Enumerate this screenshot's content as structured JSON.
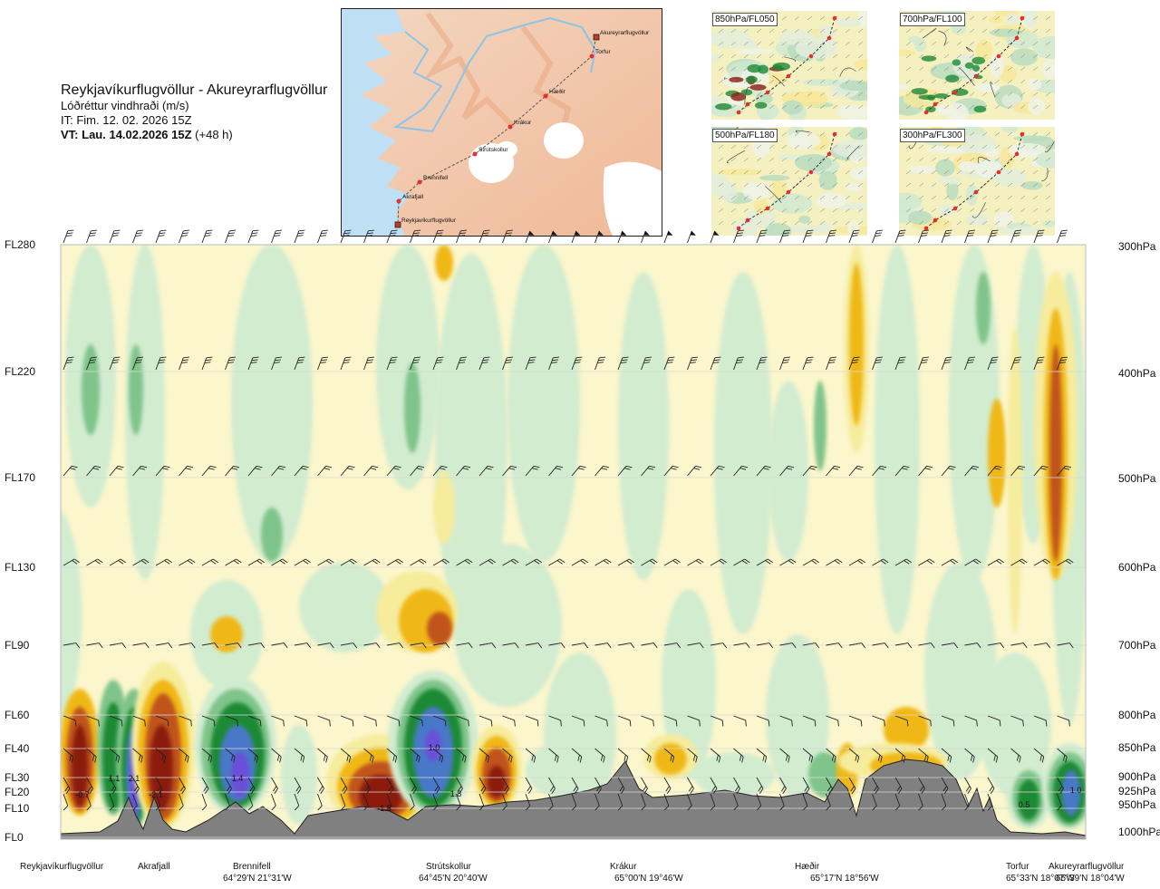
{
  "header": {
    "route": "Reykjavíkurflugvöllur - Akureyrarflugvöllur",
    "quantity": "Lóðréttur vindhraði (m/s)",
    "issue_time": "IT: Fim. 12. 02. 2026 15Z",
    "valid_label": "VT:",
    "valid_time": "Lau. 14.02.2026 15Z",
    "valid_offset": "(+48 h)"
  },
  "route_map": {
    "points": [
      {
        "name": "Akureyrarflugvöllur",
        "kind": "airport"
      },
      {
        "name": "Torfur",
        "kind": "waypoint"
      },
      {
        "name": "Hæðir",
        "kind": "waypoint"
      },
      {
        "name": "Krákur",
        "kind": "waypoint"
      },
      {
        "name": "Strútskollur",
        "kind": "waypoint"
      },
      {
        "name": "Brennifell",
        "kind": "waypoint"
      },
      {
        "name": "Akrafjall",
        "kind": "waypoint"
      },
      {
        "name": "Reykjavíkurflugvöllur",
        "kind": "airport"
      }
    ]
  },
  "level_maps": [
    {
      "label": "850hPa/FL050"
    },
    {
      "label": "700hPa/FL100"
    },
    {
      "label": "500hPa/FL180"
    },
    {
      "label": "300hPa/FL300"
    }
  ],
  "chart_data": {
    "type": "heatmap",
    "x_axis": {
      "locations": [
        {
          "name": "Reykjavíkurflugvöllur",
          "coord": ""
        },
        {
          "name": "Akrafjall",
          "coord": ""
        },
        {
          "name": "Brennifell",
          "coord": "64°29'N 21°31'W"
        },
        {
          "name": "Strútskollur",
          "coord": "64°45'N 20°40'W"
        },
        {
          "name": "Krákur",
          "coord": "65°00'N 19°46'W"
        },
        {
          "name": "Hæðir",
          "coord": "65°17'N 18°56'W"
        },
        {
          "name": "Torfur",
          "coord": "65°33'N 18°07'W"
        },
        {
          "name": "Akureyrarflugvöllur",
          "coord": "65°39'N 18°04'W"
        }
      ]
    },
    "y_axis": {
      "left_levels": [
        "FL280",
        "FL220",
        "FL170",
        "FL130",
        "FL90",
        "FL60",
        "FL40",
        "FL30",
        "FL20",
        "FL10",
        "FL0"
      ],
      "right_levels": [
        "300hPa",
        "400hPa",
        "500hPa",
        "600hPa",
        "700hPa",
        "800hPa",
        "850hPa",
        "900hPa",
        "925hPa",
        "950hPa",
        "1000hPa"
      ]
    },
    "value_labels": [
      "-0.7",
      "1.1",
      "2.1",
      "-2.1",
      "1.4",
      "-1.5",
      "1.0",
      "1.8",
      "0.5",
      "1.0"
    ],
    "wind_barb_rows": 9,
    "terrain_color": "#808080",
    "color_scale": {
      "strong_down": "#8b1a10",
      "down": "#c0551c",
      "weak_down": "#f0b818",
      "slight_down": "#f6ec9c",
      "neutral": "#fbf6cc",
      "slight_up": "#d2ecd0",
      "weak_up": "#7fc48a",
      "up": "#1d8a34",
      "strong_up": "#4a78c8",
      "very_strong_up": "#6a50d8"
    }
  }
}
